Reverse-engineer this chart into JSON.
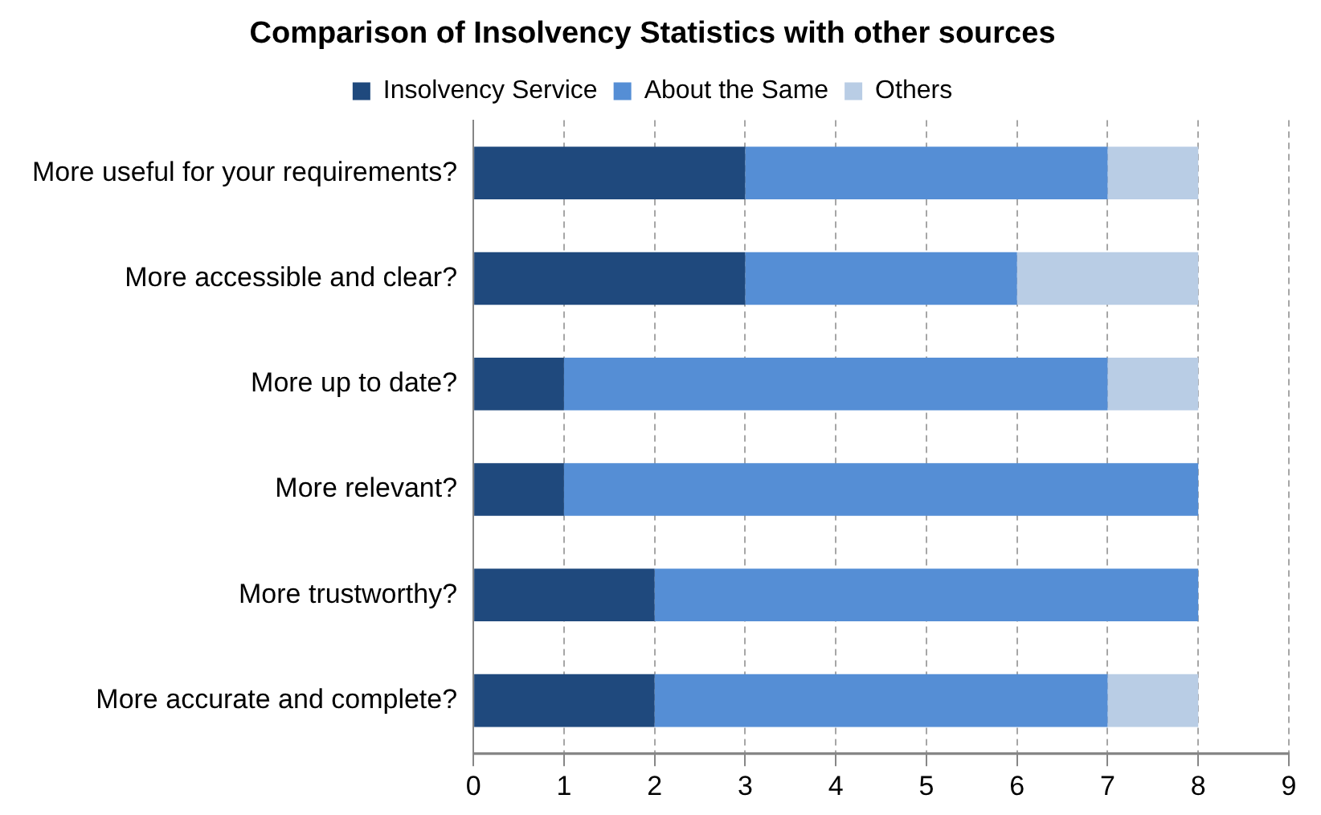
{
  "chart_data": {
    "type": "bar",
    "orientation": "horizontal",
    "stacked": true,
    "title": "Comparison of Insolvency Statistics with other sources",
    "categories": [
      "More useful for your requirements?",
      "More accessible and clear?",
      "More up to date?",
      "More relevant?",
      "More trustworthy?",
      "More accurate and complete?"
    ],
    "series": [
      {
        "name": "Insolvency Service",
        "color": "#1f497d",
        "values": [
          3,
          3,
          1,
          1,
          2,
          2
        ]
      },
      {
        "name": "About the Same",
        "color": "#558ed5",
        "values": [
          4,
          3,
          6,
          7,
          6,
          5
        ]
      },
      {
        "name": "Others",
        "color": "#b9cde5",
        "values": [
          1,
          2,
          1,
          0,
          0,
          1
        ]
      }
    ],
    "xlim": [
      0,
      9
    ],
    "xticks": [
      0,
      1,
      2,
      3,
      4,
      5,
      6,
      7,
      8,
      9
    ],
    "grid": "x",
    "legend": "top"
  }
}
